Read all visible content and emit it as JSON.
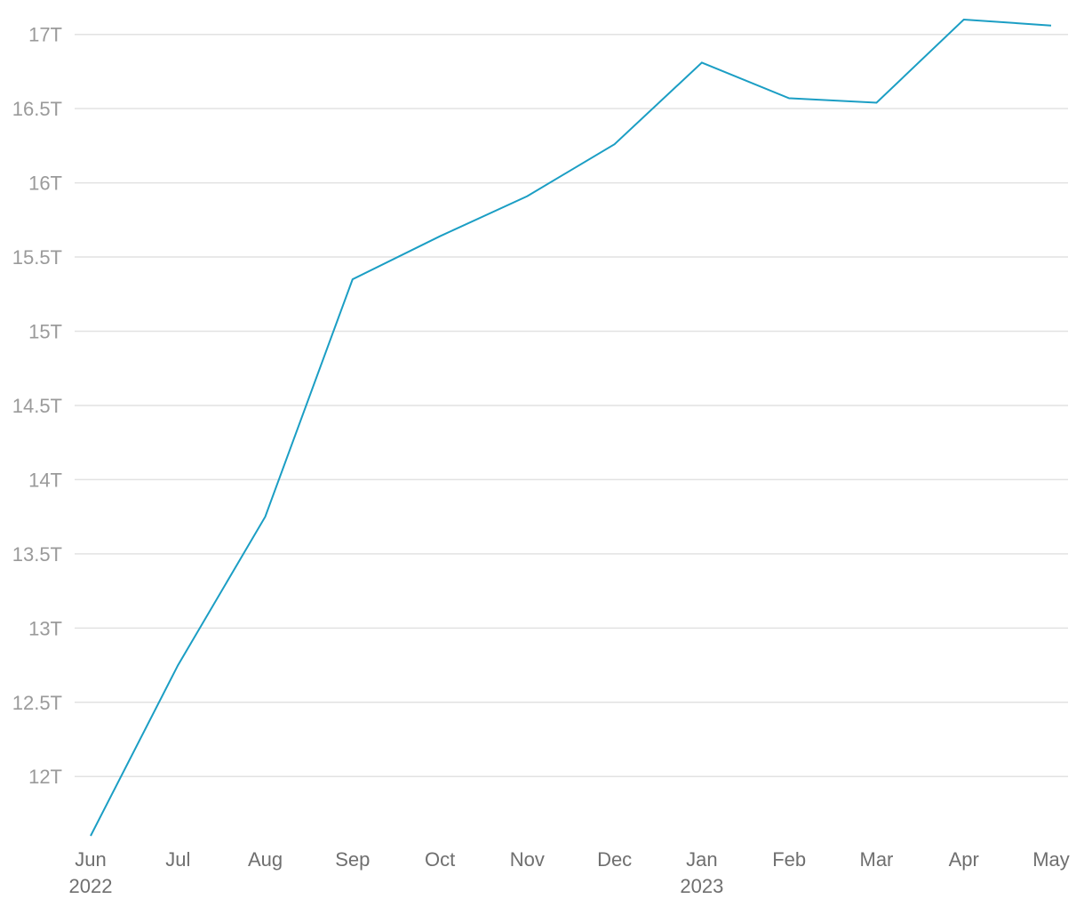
{
  "chart_data": {
    "type": "line",
    "title": "",
    "xlabel": "",
    "ylabel": "",
    "grid": true,
    "line_color": "#1b9ec4",
    "x": [
      "2022-06-01",
      "2022-07-01",
      "2022-08-01",
      "2022-09-01",
      "2022-10-01",
      "2022-11-01",
      "2022-12-01",
      "2023-01-01",
      "2023-02-01",
      "2023-03-01",
      "2023-04-01",
      "2023-05-01"
    ],
    "x_tick_labels": [
      {
        "month": "Jun",
        "year": "2022"
      },
      {
        "month": "Jul",
        "year": ""
      },
      {
        "month": "Aug",
        "year": ""
      },
      {
        "month": "Sep",
        "year": ""
      },
      {
        "month": "Oct",
        "year": ""
      },
      {
        "month": "Nov",
        "year": ""
      },
      {
        "month": "Dec",
        "year": ""
      },
      {
        "month": "Jan",
        "year": "2023"
      },
      {
        "month": "Feb",
        "year": ""
      },
      {
        "month": "Mar",
        "year": ""
      },
      {
        "month": "Apr",
        "year": ""
      },
      {
        "month": "May",
        "year": ""
      }
    ],
    "series": [
      {
        "values": [
          11.6,
          12.75,
          13.75,
          15.35,
          15.64,
          15.91,
          16.26,
          16.81,
          16.57,
          16.54,
          17.1,
          17.06
        ]
      }
    ],
    "y_unit_suffix": "T",
    "y_ticks": [
      12,
      12.5,
      13,
      13.5,
      14,
      14.5,
      15,
      15.5,
      16,
      16.5,
      17
    ],
    "y_tick_labels": [
      "12T",
      "12.5T",
      "13T",
      "13.5T",
      "14T",
      "14.5T",
      "15T",
      "15.5T",
      "16T",
      "16.5T",
      "17T"
    ],
    "ylim": [
      11.6,
      17.1
    ]
  }
}
